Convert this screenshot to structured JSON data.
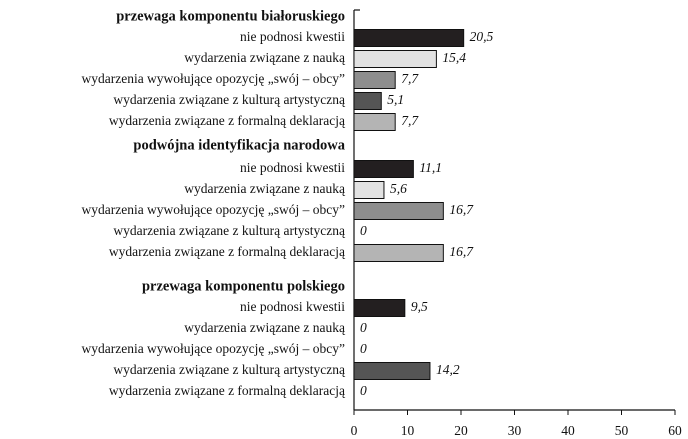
{
  "chart_data": {
    "type": "bar",
    "categories": [
      "nie podnosi kwestii",
      "wydarzenia związane z nauką",
      "wydarzenia wywołujące opozycję „swój – obcy”",
      "wydarzenia związane z kulturą artystyczną",
      "wydarzenia związane z formalną deklaracją"
    ],
    "colors": [
      "#231f20",
      "#e2e2e2",
      "#8e8e8e",
      "#555555",
      "#b4b4b4"
    ],
    "series": [
      {
        "name": "przewaga komponentu białoruskiego",
        "values": [
          20.5,
          15.4,
          7.7,
          5.1,
          7.7
        ],
        "value_labels": [
          "20,5",
          "15,4",
          "7,7",
          "5,1",
          "7,7"
        ]
      },
      {
        "name": "podwójna identyfikacja narodowa",
        "values": [
          11.1,
          5.6,
          16.7,
          0,
          16.7
        ],
        "value_labels": [
          "11,1",
          "5,6",
          "16,7",
          "0",
          "16,7"
        ]
      },
      {
        "name": "przewaga komponentu polskiego",
        "values": [
          9.5,
          0,
          0,
          14.2,
          0
        ],
        "value_labels": [
          "9,5",
          "0",
          "0",
          "14,2",
          "0"
        ]
      }
    ],
    "xlim": [
      0,
      60
    ],
    "xticks": [
      0,
      10,
      20,
      30,
      40,
      50,
      60
    ]
  }
}
